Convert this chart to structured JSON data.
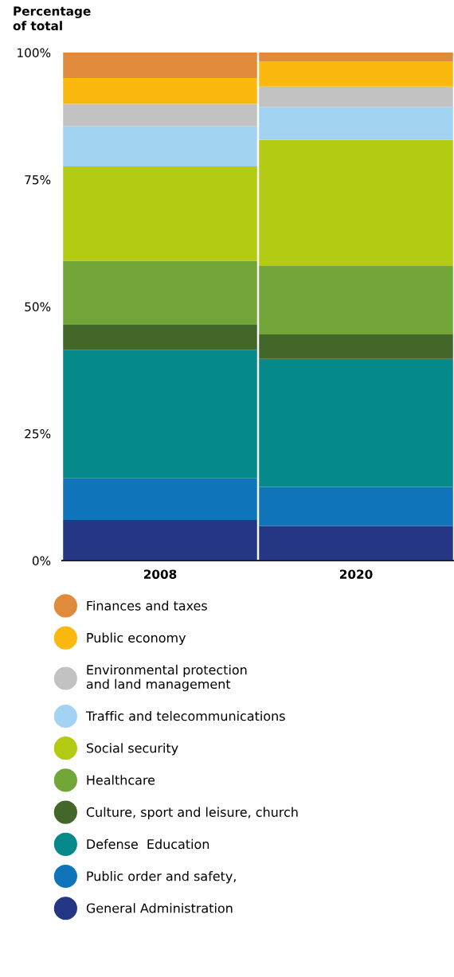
{
  "chart_data": {
    "type": "bar",
    "stacked": true,
    "ylabel": "Percentage\nof total",
    "categories": [
      "2008",
      "2020"
    ],
    "ylim": [
      0,
      100
    ],
    "yticks": [
      {
        "value": 0,
        "label": "0%"
      },
      {
        "value": 25,
        "label": "25%"
      },
      {
        "value": 50,
        "label": "50%"
      },
      {
        "value": 75,
        "label": "75%"
      },
      {
        "value": 100,
        "label": "100%"
      }
    ],
    "grid": false,
    "legend": "bottom",
    "marker": "circle",
    "series": [
      {
        "name": "General Administration",
        "color": "#253784",
        "values": [
          8.0,
          6.8
        ]
      },
      {
        "name": "Public order and safety,",
        "color": "#0f74b9",
        "values": [
          8.2,
          7.7
        ]
      },
      {
        "name": "Defense  Education",
        "color": "#05898a",
        "values": [
          25.3,
          25.2
        ]
      },
      {
        "name": "Culture, sport and leisure, church",
        "color": "#436629",
        "values": [
          5.0,
          4.8
        ]
      },
      {
        "name": "Healthcare",
        "color": "#72a639",
        "values": [
          12.5,
          13.5
        ]
      },
      {
        "name": "Social security",
        "color": "#b3cb12",
        "values": [
          18.6,
          24.8
        ]
      },
      {
        "name": "Traffic and telecommunications",
        "color": "#a3d3f2",
        "values": [
          7.9,
          6.5
        ]
      },
      {
        "name": "Environmental protection\nand land management",
        "color": "#c2c2c2",
        "values": [
          4.4,
          4.0
        ]
      },
      {
        "name": "Public economy",
        "color": "#fbb80f",
        "values": [
          5.1,
          4.9
        ]
      },
      {
        "name": "Finances and taxes",
        "color": "#e08a3c",
        "values": [
          5.0,
          1.8
        ]
      }
    ]
  }
}
